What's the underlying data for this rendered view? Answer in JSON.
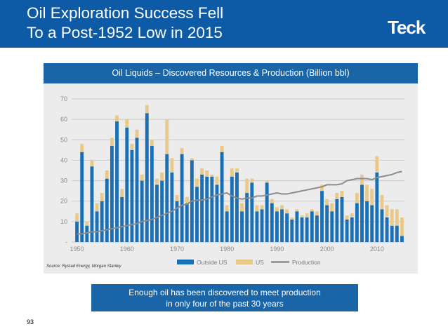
{
  "header": {
    "title_line1": "Oil Exploration Success Fell",
    "title_line2": "To a Post-1952 Low in 2015",
    "logo": "Teck"
  },
  "source_note": "Source: Rystad Energy, Morgan Stanley",
  "callout": {
    "line1": "Enough oil has been discovered to meet production",
    "line2": "in only four of the past 30 years"
  },
  "page_number": "93",
  "colors": {
    "header_bg": "#0d5aa7",
    "outside_us": "#1a6fb5",
    "us": "#e8c98a",
    "production": "#8c8c8c"
  },
  "chart_data": {
    "type": "bar",
    "stacked": true,
    "title": "Oil Liquids – Discovered Resources & Production (Billion bbl)",
    "xlabel": "",
    "ylabel": "",
    "ylim": [
      0,
      70
    ],
    "yticks": [
      0,
      10,
      20,
      30,
      40,
      50,
      60,
      70
    ],
    "ytick_labels": [
      "-",
      "10",
      "20",
      "30",
      "40",
      "50",
      "60",
      "70"
    ],
    "xticks": [
      1950,
      1960,
      1970,
      1980,
      1990,
      2000,
      2010
    ],
    "grid": true,
    "legend": {
      "position": "bottom",
      "entries": [
        "Outside US",
        "US",
        "Production"
      ]
    },
    "categories": [
      1950,
      1951,
      1952,
      1953,
      1954,
      1955,
      1956,
      1957,
      1958,
      1959,
      1960,
      1961,
      1962,
      1963,
      1964,
      1965,
      1966,
      1967,
      1968,
      1969,
      1970,
      1971,
      1972,
      1973,
      1974,
      1975,
      1976,
      1977,
      1978,
      1979,
      1980,
      1981,
      1982,
      1983,
      1984,
      1985,
      1986,
      1987,
      1988,
      1989,
      1990,
      1991,
      1992,
      1993,
      1994,
      1995,
      1996,
      1997,
      1998,
      1999,
      2000,
      2001,
      2002,
      2003,
      2004,
      2005,
      2006,
      2007,
      2008,
      2009,
      2010,
      2011,
      2012,
      2013,
      2014,
      2015
    ],
    "series": [
      {
        "name": "Outside US",
        "kind": "bar",
        "values": [
          10,
          44,
          8,
          37,
          15,
          20,
          31,
          47,
          59,
          22,
          56,
          45,
          51,
          30,
          63,
          47,
          28,
          30,
          43,
          34,
          20,
          43,
          19,
          40,
          27,
          33,
          32,
          32,
          28,
          44,
          15,
          32,
          34,
          15,
          24,
          29,
          15,
          16,
          29,
          19,
          15,
          16,
          14,
          11,
          15,
          12,
          12,
          15,
          13,
          25,
          18,
          15,
          21,
          22,
          11,
          12,
          19,
          28,
          20,
          18,
          34,
          16,
          12,
          8,
          8,
          3
        ]
      },
      {
        "name": "US",
        "kind": "bar",
        "values": [
          4,
          4,
          2,
          3,
          4,
          4,
          4,
          4,
          3,
          4,
          4,
          3,
          4,
          3,
          4,
          3,
          3,
          4,
          17,
          7,
          3,
          3,
          3,
          1,
          4,
          3,
          3,
          1,
          4,
          3,
          3,
          4,
          2,
          4,
          7,
          2,
          3,
          2,
          1,
          2,
          2,
          2,
          2,
          1,
          1,
          1,
          2,
          1,
          2,
          3,
          3,
          4,
          3,
          3,
          2,
          2,
          5,
          5,
          8,
          8,
          8,
          7,
          6,
          8,
          8,
          9
        ]
      },
      {
        "name": "Production",
        "kind": "line",
        "values": [
          4,
          4,
          4.5,
          5,
          5,
          5.5,
          6,
          6.5,
          7,
          7.5,
          8,
          8.5,
          9,
          10,
          10.5,
          11,
          12,
          13,
          14,
          15,
          16.5,
          18,
          18.5,
          20,
          20.5,
          20.5,
          21,
          22,
          23,
          23.5,
          24,
          22.5,
          21.5,
          21,
          21.5,
          21.5,
          22.5,
          22.5,
          23,
          23.5,
          24,
          23.5,
          23.5,
          24,
          24.5,
          25,
          25.5,
          26,
          26.5,
          27,
          28,
          28,
          28,
          28.5,
          30,
          30.5,
          31,
          31,
          31,
          30.5,
          31.5,
          32,
          32.5,
          33,
          34,
          34.5
        ]
      }
    ]
  }
}
